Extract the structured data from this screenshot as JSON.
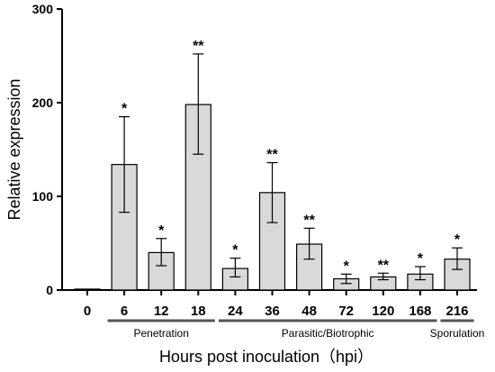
{
  "chart_data": {
    "type": "bar",
    "xlabel": "Hours post inoculation（hpi）",
    "ylabel": "Relative expression",
    "ylim": [
      0,
      300
    ],
    "yticks": [
      0,
      100,
      200,
      300
    ],
    "categories": [
      "0",
      "6",
      "12",
      "18",
      "24",
      "36",
      "48",
      "72",
      "120",
      "168",
      "216"
    ],
    "values": [
      1,
      134,
      40,
      198,
      23,
      104,
      49,
      12,
      14,
      17,
      33
    ],
    "error_low": [
      1,
      83,
      26,
      145,
      14,
      72,
      33,
      7,
      11,
      11,
      22
    ],
    "error_high": [
      1,
      185,
      55,
      252,
      34,
      136,
      66,
      17,
      18,
      25,
      45
    ],
    "significance": [
      "",
      "*",
      "*",
      "**",
      "*",
      "**",
      "**",
      "*",
      "**",
      "*",
      "*"
    ],
    "groups": [
      {
        "label": "Penetration",
        "start": 1,
        "end": 3
      },
      {
        "label": "Parasitic/Biotrophic",
        "start": 4,
        "end": 9
      },
      {
        "label": "Sporulation",
        "start": 10,
        "end": 10
      }
    ],
    "bar_color": "#d9d9d9",
    "group_line_color": "#555555"
  }
}
